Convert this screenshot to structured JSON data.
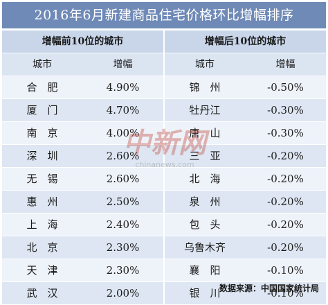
{
  "title": "2016年6月新建商品住宅价格环比增幅排序",
  "left_section": "增幅前10位的城市",
  "right_section": "增幅后10位的城市",
  "col_city": "城市",
  "col_value": "增幅",
  "source": "数据来源：中国国家统计局",
  "watermark": {
    "cn": "中新网",
    "en": "chinanews.com"
  },
  "chart_data": {
    "type": "table",
    "title": "2016年6月新建商品住宅价格环比增幅排序",
    "source": "数据来源：中国国家统计局",
    "top10": [
      {
        "city": "合　肥",
        "value": "4.90%"
      },
      {
        "city": "厦　门",
        "value": "4.70%"
      },
      {
        "city": "南　京",
        "value": "4.00%"
      },
      {
        "city": "深　圳",
        "value": "2.60%"
      },
      {
        "city": "无　锡",
        "value": "2.60%"
      },
      {
        "city": "惠　州",
        "value": "2.50%"
      },
      {
        "city": "上　海",
        "value": "2.40%"
      },
      {
        "city": "北　京",
        "value": "2.30%"
      },
      {
        "city": "天　津",
        "value": "2.30%"
      },
      {
        "city": "武　汉",
        "value": "2.00%"
      }
    ],
    "bottom10": [
      {
        "city": "锦　州",
        "value": "-0.50%"
      },
      {
        "city": "牡丹江",
        "value": "-0.30%"
      },
      {
        "city": "唐　山",
        "value": "-0.30%"
      },
      {
        "city": "三　亚",
        "value": "-0.20%"
      },
      {
        "city": "北　海",
        "value": "-0.20%"
      },
      {
        "city": "泉　州",
        "value": "-0.20%"
      },
      {
        "city": "包　头",
        "value": "-0.20%"
      },
      {
        "city": "乌鲁木齐",
        "value": "-0.20%"
      },
      {
        "city": "襄　阳",
        "value": "-0.10%"
      },
      {
        "city": "银　川",
        "value": "-0.10%"
      }
    ]
  }
}
